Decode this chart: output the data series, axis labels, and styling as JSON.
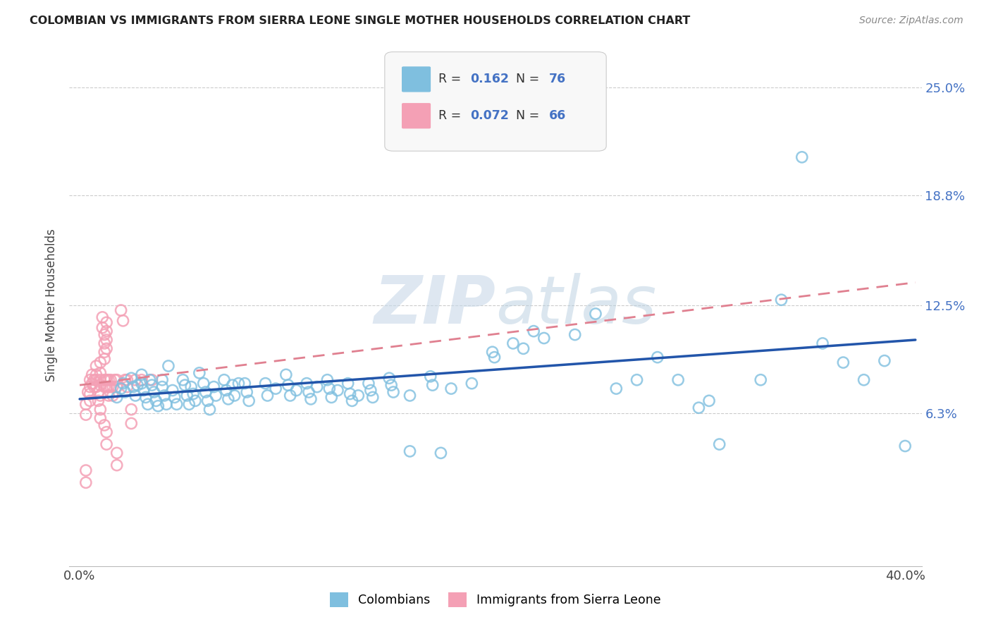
{
  "title": "COLOMBIAN VS IMMIGRANTS FROM SIERRA LEONE SINGLE MOTHER HOUSEHOLDS CORRELATION CHART",
  "source": "Source: ZipAtlas.com",
  "ylabel": "Single Mother Households",
  "ytick_labels": [
    "6.3%",
    "12.5%",
    "18.8%",
    "25.0%"
  ],
  "ytick_values": [
    0.063,
    0.125,
    0.188,
    0.25
  ],
  "xlim": [
    -0.005,
    0.408
  ],
  "ylim": [
    -0.025,
    0.275
  ],
  "colombian_color": "#7fbfdf",
  "sierra_leone_color": "#f4a0b5",
  "trend_blue_color": "#2255aa",
  "trend_pink_color": "#e08090",
  "blue_trend_x": [
    0.0,
    0.405
  ],
  "blue_trend_y": [
    0.071,
    0.105
  ],
  "pink_trend_x": [
    0.0,
    0.405
  ],
  "pink_trend_y": [
    0.079,
    0.138
  ],
  "watermark_zip": "ZIP",
  "watermark_atlas": "atlas",
  "colombian_scatter": [
    [
      0.018,
      0.072
    ],
    [
      0.02,
      0.077
    ],
    [
      0.021,
      0.08
    ],
    [
      0.022,
      0.075
    ],
    [
      0.025,
      0.083
    ],
    [
      0.026,
      0.078
    ],
    [
      0.027,
      0.073
    ],
    [
      0.028,
      0.079
    ],
    [
      0.03,
      0.085
    ],
    [
      0.03,
      0.08
    ],
    [
      0.031,
      0.076
    ],
    [
      0.032,
      0.072
    ],
    [
      0.033,
      0.068
    ],
    [
      0.034,
      0.082
    ],
    [
      0.035,
      0.079
    ],
    [
      0.036,
      0.075
    ],
    [
      0.037,
      0.07
    ],
    [
      0.038,
      0.067
    ],
    [
      0.04,
      0.082
    ],
    [
      0.04,
      0.078
    ],
    [
      0.041,
      0.073
    ],
    [
      0.042,
      0.068
    ],
    [
      0.043,
      0.09
    ],
    [
      0.045,
      0.076
    ],
    [
      0.046,
      0.072
    ],
    [
      0.047,
      0.068
    ],
    [
      0.05,
      0.082
    ],
    [
      0.051,
      0.079
    ],
    [
      0.052,
      0.073
    ],
    [
      0.053,
      0.068
    ],
    [
      0.054,
      0.078
    ],
    [
      0.055,
      0.074
    ],
    [
      0.056,
      0.07
    ],
    [
      0.058,
      0.086
    ],
    [
      0.06,
      0.08
    ],
    [
      0.061,
      0.075
    ],
    [
      0.062,
      0.07
    ],
    [
      0.063,
      0.065
    ],
    [
      0.065,
      0.078
    ],
    [
      0.066,
      0.073
    ],
    [
      0.07,
      0.082
    ],
    [
      0.071,
      0.076
    ],
    [
      0.072,
      0.071
    ],
    [
      0.074,
      0.079
    ],
    [
      0.075,
      0.073
    ],
    [
      0.077,
      0.08
    ],
    [
      0.08,
      0.08
    ],
    [
      0.081,
      0.075
    ],
    [
      0.082,
      0.07
    ],
    [
      0.09,
      0.08
    ],
    [
      0.091,
      0.073
    ],
    [
      0.095,
      0.077
    ],
    [
      0.1,
      0.085
    ],
    [
      0.101,
      0.079
    ],
    [
      0.102,
      0.073
    ],
    [
      0.105,
      0.076
    ],
    [
      0.11,
      0.08
    ],
    [
      0.111,
      0.075
    ],
    [
      0.112,
      0.071
    ],
    [
      0.115,
      0.078
    ],
    [
      0.12,
      0.082
    ],
    [
      0.121,
      0.077
    ],
    [
      0.122,
      0.072
    ],
    [
      0.125,
      0.076
    ],
    [
      0.13,
      0.08
    ],
    [
      0.131,
      0.074
    ],
    [
      0.132,
      0.07
    ],
    [
      0.135,
      0.073
    ],
    [
      0.14,
      0.08
    ],
    [
      0.141,
      0.076
    ],
    [
      0.142,
      0.072
    ],
    [
      0.15,
      0.083
    ],
    [
      0.151,
      0.079
    ],
    [
      0.152,
      0.075
    ],
    [
      0.16,
      0.073
    ],
    [
      0.17,
      0.084
    ],
    [
      0.171,
      0.079
    ],
    [
      0.175,
      0.04
    ],
    [
      0.18,
      0.077
    ],
    [
      0.19,
      0.08
    ],
    [
      0.2,
      0.098
    ],
    [
      0.201,
      0.095
    ],
    [
      0.21,
      0.103
    ],
    [
      0.215,
      0.1
    ],
    [
      0.22,
      0.11
    ],
    [
      0.225,
      0.106
    ],
    [
      0.24,
      0.108
    ],
    [
      0.25,
      0.12
    ],
    [
      0.26,
      0.077
    ],
    [
      0.27,
      0.082
    ],
    [
      0.28,
      0.095
    ],
    [
      0.29,
      0.082
    ],
    [
      0.3,
      0.066
    ],
    [
      0.305,
      0.07
    ],
    [
      0.33,
      0.082
    ],
    [
      0.35,
      0.21
    ],
    [
      0.36,
      0.103
    ],
    [
      0.37,
      0.092
    ],
    [
      0.38,
      0.082
    ],
    [
      0.39,
      0.093
    ],
    [
      0.4,
      0.044
    ],
    [
      0.34,
      0.128
    ],
    [
      0.31,
      0.045
    ],
    [
      0.16,
      0.041
    ]
  ],
  "sierra_leone_scatter": [
    [
      0.003,
      0.068
    ],
    [
      0.003,
      0.062
    ],
    [
      0.004,
      0.075
    ],
    [
      0.005,
      0.082
    ],
    [
      0.005,
      0.078
    ],
    [
      0.005,
      0.074
    ],
    [
      0.005,
      0.07
    ],
    [
      0.006,
      0.085
    ],
    [
      0.006,
      0.08
    ],
    [
      0.007,
      0.082
    ],
    [
      0.007,
      0.078
    ],
    [
      0.008,
      0.09
    ],
    [
      0.008,
      0.085
    ],
    [
      0.008,
      0.082
    ],
    [
      0.008,
      0.078
    ],
    [
      0.009,
      0.075
    ],
    [
      0.009,
      0.07
    ],
    [
      0.01,
      0.092
    ],
    [
      0.01,
      0.086
    ],
    [
      0.01,
      0.082
    ],
    [
      0.01,
      0.079
    ],
    [
      0.01,
      0.073
    ],
    [
      0.01,
      0.065
    ],
    [
      0.01,
      0.06
    ],
    [
      0.011,
      0.118
    ],
    [
      0.011,
      0.112
    ],
    [
      0.012,
      0.108
    ],
    [
      0.012,
      0.103
    ],
    [
      0.012,
      0.098
    ],
    [
      0.012,
      0.094
    ],
    [
      0.012,
      0.082
    ],
    [
      0.012,
      0.078
    ],
    [
      0.012,
      0.056
    ],
    [
      0.013,
      0.115
    ],
    [
      0.013,
      0.11
    ],
    [
      0.013,
      0.105
    ],
    [
      0.013,
      0.1
    ],
    [
      0.013,
      0.082
    ],
    [
      0.013,
      0.078
    ],
    [
      0.013,
      0.052
    ],
    [
      0.013,
      0.045
    ],
    [
      0.014,
      0.082
    ],
    [
      0.014,
      0.078
    ],
    [
      0.014,
      0.073
    ],
    [
      0.015,
      0.082
    ],
    [
      0.015,
      0.078
    ],
    [
      0.016,
      0.078
    ],
    [
      0.016,
      0.073
    ],
    [
      0.017,
      0.082
    ],
    [
      0.018,
      0.082
    ],
    [
      0.018,
      0.078
    ],
    [
      0.018,
      0.04
    ],
    [
      0.018,
      0.033
    ],
    [
      0.02,
      0.122
    ],
    [
      0.021,
      0.116
    ],
    [
      0.022,
      0.082
    ],
    [
      0.023,
      0.082
    ],
    [
      0.023,
      0.078
    ],
    [
      0.025,
      0.065
    ],
    [
      0.025,
      0.057
    ],
    [
      0.027,
      0.082
    ],
    [
      0.03,
      0.082
    ],
    [
      0.035,
      0.082
    ],
    [
      0.003,
      0.03
    ],
    [
      0.003,
      0.023
    ]
  ]
}
